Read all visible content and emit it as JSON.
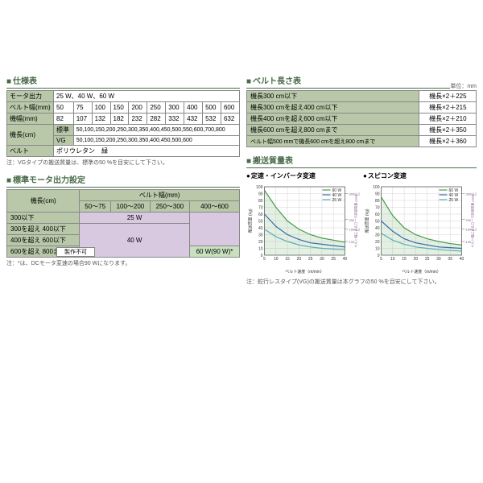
{
  "spec": {
    "title": "仕様表",
    "rows": [
      {
        "label": "モータ出力",
        "value": "25 W、40 W、60 W"
      },
      {
        "label": "ベルト幅(mm)",
        "cells": [
          "50",
          "75",
          "100",
          "150",
          "200",
          "250",
          "300",
          "400",
          "500",
          "600"
        ]
      },
      {
        "label": "機幅(mm)",
        "cells": [
          "82",
          "107",
          "132",
          "182",
          "232",
          "282",
          "332",
          "432",
          "532",
          "632"
        ]
      },
      {
        "label": "機長(cm) 標準",
        "value": "50,100,150,200,250,300,350,400,450,500,550,600,700,800"
      },
      {
        "label": "機長(cm) VG",
        "value": "50,100,150,200,250,300,350,400,450,500,600"
      },
      {
        "label": "ベルト",
        "value": "ポリウレタン　緑"
      }
    ],
    "note": "注：VGタイプの搬送質量は、標準の50 %を目安にして下さい。"
  },
  "motor": {
    "title": "標準モータ出力設定",
    "col_header": "ベルト幅(mm)",
    "row_header": "機長(cm)",
    "cols": [
      "50～75",
      "100～200",
      "250～300",
      "400～600"
    ],
    "rows": [
      "300以下",
      "300を超え 400以下",
      "400を超え 600以下",
      "600を超え 800まで"
    ],
    "v25": "25 W",
    "v40": "40 W",
    "v60": "60 W(90 W)*",
    "vna": "製作不可",
    "note": "注：*は、DCモータ変速の場合90 Wになります。"
  },
  "belt": {
    "title": "ベルト長さ表",
    "unit": "単位：mm",
    "rows": [
      {
        "cond": "機長300 cm以下",
        "val": "機長×2＋225"
      },
      {
        "cond": "機長300 cmを超え400 cm以下",
        "val": "機長×2＋215"
      },
      {
        "cond": "機長400 cmを超え600 cm以下",
        "val": "機長×2＋210"
      },
      {
        "cond": "機長600 cmを超え800 cmまで",
        "val": "機長×2＋350"
      },
      {
        "cond": "ベルト幅500 mmで機長600 cmを超え800 cmまで",
        "val": "機長×2＋360"
      }
    ]
  },
  "charts": {
    "title": "搬送質量表",
    "chart1_title": "定速・インバータ変速",
    "chart2_title": "スピコン変速",
    "y_label": "搬送質量",
    "y_unit": "(kg)",
    "x_label": "ベルト速度（m/min）",
    "y2_label": "ベルト幅によるローラ許容質量",
    "y2_unit": "(mm)",
    "legend": [
      "60 W",
      "40 W",
      "25 W"
    ],
    "colors": {
      "w60": "#4a9b4a",
      "w40": "#3a6aaa",
      "w25": "#5ab0b0",
      "grid": "#bbb",
      "axis": "#333",
      "y2": "#7a5a8a"
    },
    "xticks": [
      5,
      10,
      15,
      20,
      25,
      30,
      35,
      40
    ],
    "yticks": [
      0,
      10,
      20,
      30,
      40,
      50,
      60,
      70,
      80,
      90,
      100
    ],
    "y2ticks": [
      "100",
      "150以上",
      "200",
      "300以上"
    ],
    "chart1": {
      "w60": [
        [
          5,
          95
        ],
        [
          10,
          70
        ],
        [
          15,
          50
        ],
        [
          20,
          38
        ],
        [
          25,
          30
        ],
        [
          30,
          25
        ],
        [
          35,
          22
        ],
        [
          40,
          19
        ]
      ],
      "w40": [
        [
          5,
          60
        ],
        [
          10,
          42
        ],
        [
          15,
          30
        ],
        [
          20,
          23
        ],
        [
          25,
          18
        ],
        [
          30,
          16
        ],
        [
          35,
          14
        ],
        [
          40,
          12
        ]
      ],
      "w25": [
        [
          5,
          38
        ],
        [
          10,
          27
        ],
        [
          15,
          20
        ],
        [
          20,
          15
        ],
        [
          25,
          12
        ],
        [
          30,
          10
        ],
        [
          35,
          9
        ],
        [
          40,
          8
        ]
      ]
    },
    "chart2": {
      "w60": [
        [
          5,
          85
        ],
        [
          10,
          58
        ],
        [
          15,
          40
        ],
        [
          20,
          30
        ],
        [
          25,
          24
        ],
        [
          30,
          20
        ],
        [
          35,
          17
        ],
        [
          40,
          15
        ]
      ],
      "w40": [
        [
          5,
          50
        ],
        [
          10,
          35
        ],
        [
          15,
          24
        ],
        [
          20,
          18
        ],
        [
          25,
          15
        ],
        [
          30,
          12
        ],
        [
          35,
          11
        ],
        [
          40,
          10
        ]
      ],
      "w25": [
        [
          5,
          32
        ],
        [
          10,
          22
        ],
        [
          15,
          16
        ],
        [
          20,
          12
        ],
        [
          25,
          10
        ],
        [
          30,
          8
        ],
        [
          35,
          7
        ],
        [
          40,
          6
        ]
      ]
    },
    "note": "注：蛇行レスタイプ(VG)の搬送質量は本グラフの50 %を目安にして下さい。"
  }
}
